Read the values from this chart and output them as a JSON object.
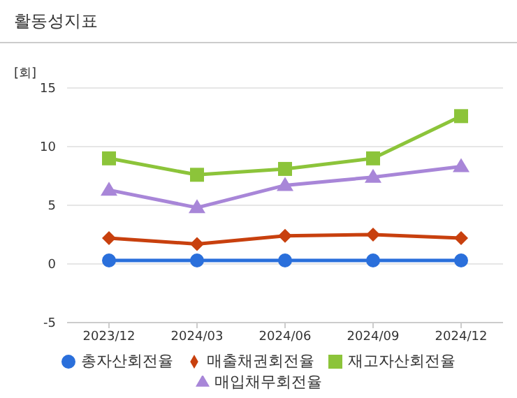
{
  "chart_data": {
    "type": "line",
    "title": "활동성지표",
    "ylabel": "[회]",
    "categories": [
      "2023/12",
      "2024/03",
      "2024/06",
      "2024/09",
      "2024/12"
    ],
    "series": [
      {
        "name": "총자산회전율",
        "color": "#2a6fdb",
        "marker": "circle",
        "values": [
          0.3,
          0.3,
          0.3,
          0.3,
          0.3
        ]
      },
      {
        "name": "매출채권회전율",
        "color": "#c8400e",
        "marker": "diamond",
        "values": [
          2.2,
          1.7,
          2.4,
          2.5,
          2.2
        ]
      },
      {
        "name": "재고자산회전율",
        "color": "#8cc43a",
        "marker": "square",
        "values": [
          9.0,
          7.6,
          8.1,
          9.0,
          12.6
        ]
      },
      {
        "name": "매입채무회전율",
        "color": "#a886d8",
        "marker": "triangle",
        "values": [
          6.3,
          4.8,
          6.7,
          7.4,
          8.3
        ]
      }
    ],
    "ylim": [
      -5,
      15
    ],
    "yticks": [
      -5,
      0,
      5,
      10,
      15
    ],
    "grid": "y",
    "legend": "bottom"
  }
}
